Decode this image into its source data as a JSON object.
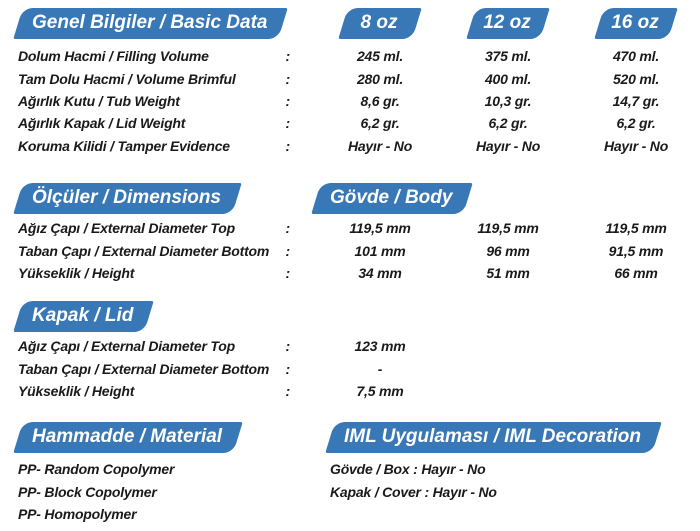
{
  "colors": {
    "banner_blue": "#3978B7",
    "banner_text": "#FFFFFF",
    "body_text": "#1A1A1A"
  },
  "sections": {
    "basic": {
      "title": "Genel Bilgiler / Basic Data",
      "size_headers": [
        "8 oz",
        "12 oz",
        "16 oz"
      ],
      "colon": ":",
      "rows": [
        {
          "label": "Dolum Hacmi / Filling Volume",
          "colon": ":",
          "values": [
            "245 ml.",
            "375 ml.",
            "470 ml."
          ]
        },
        {
          "label": "Tam Dolu Hacmi / Volume Brimful",
          "colon": ":",
          "values": [
            "280 ml.",
            "400 ml.",
            "520 ml."
          ]
        },
        {
          "label": "Ağırlık Kutu / Tub Weight",
          "colon": ":",
          "values": [
            "8,6 gr.",
            "10,3 gr.",
            "14,7 gr."
          ]
        },
        {
          "label": "Ağırlık Kapak / Lid Weight",
          "colon": ":",
          "values": [
            "6,2 gr.",
            "6,2 gr.",
            "6,2 gr."
          ]
        },
        {
          "label": "Koruma Kilidi / Tamper Evidence",
          "colon": ":",
          "values": [
            "Hayır - No",
            "Hayır - No",
            "Hayır - No"
          ]
        }
      ]
    },
    "dimensions": {
      "title": "Ölçüler / Dimensions",
      "subtitle": "Gövde / Body",
      "rows": [
        {
          "label": "Ağız Çapı / External Diameter Top",
          "colon": ":",
          "values": [
            "119,5 mm",
            "119,5 mm",
            "119,5 mm"
          ]
        },
        {
          "label": "Taban Çapı / External Diameter Bottom",
          "colon": ":",
          "values": [
            "101 mm",
            "96 mm",
            "91,5 mm"
          ]
        },
        {
          "label": "Yükseklik / Height",
          "colon": ":",
          "values": [
            "34 mm",
            "51 mm",
            "66 mm"
          ]
        }
      ]
    },
    "lid": {
      "title": "Kapak / Lid",
      "rows": [
        {
          "label": "Ağız Çapı / External Diameter Top",
          "colon": ":",
          "value": "123 mm"
        },
        {
          "label": "Taban Çapı / External Diameter Bottom",
          "colon": ":",
          "value": "-"
        },
        {
          "label": "Yükseklik / Height",
          "colon": ":",
          "value": "7,5 mm"
        }
      ]
    },
    "material": {
      "title": "Hammadde / Material",
      "rows": [
        "PP- Random Copolymer",
        "PP- Block Copolymer",
        "PP- Homopolymer"
      ]
    },
    "iml": {
      "title": "IML Uygulaması / IML Decoration",
      "rows": [
        "Gövde / Box : Hayır - No",
        "Kapak / Cover : Hayır - No"
      ]
    }
  }
}
